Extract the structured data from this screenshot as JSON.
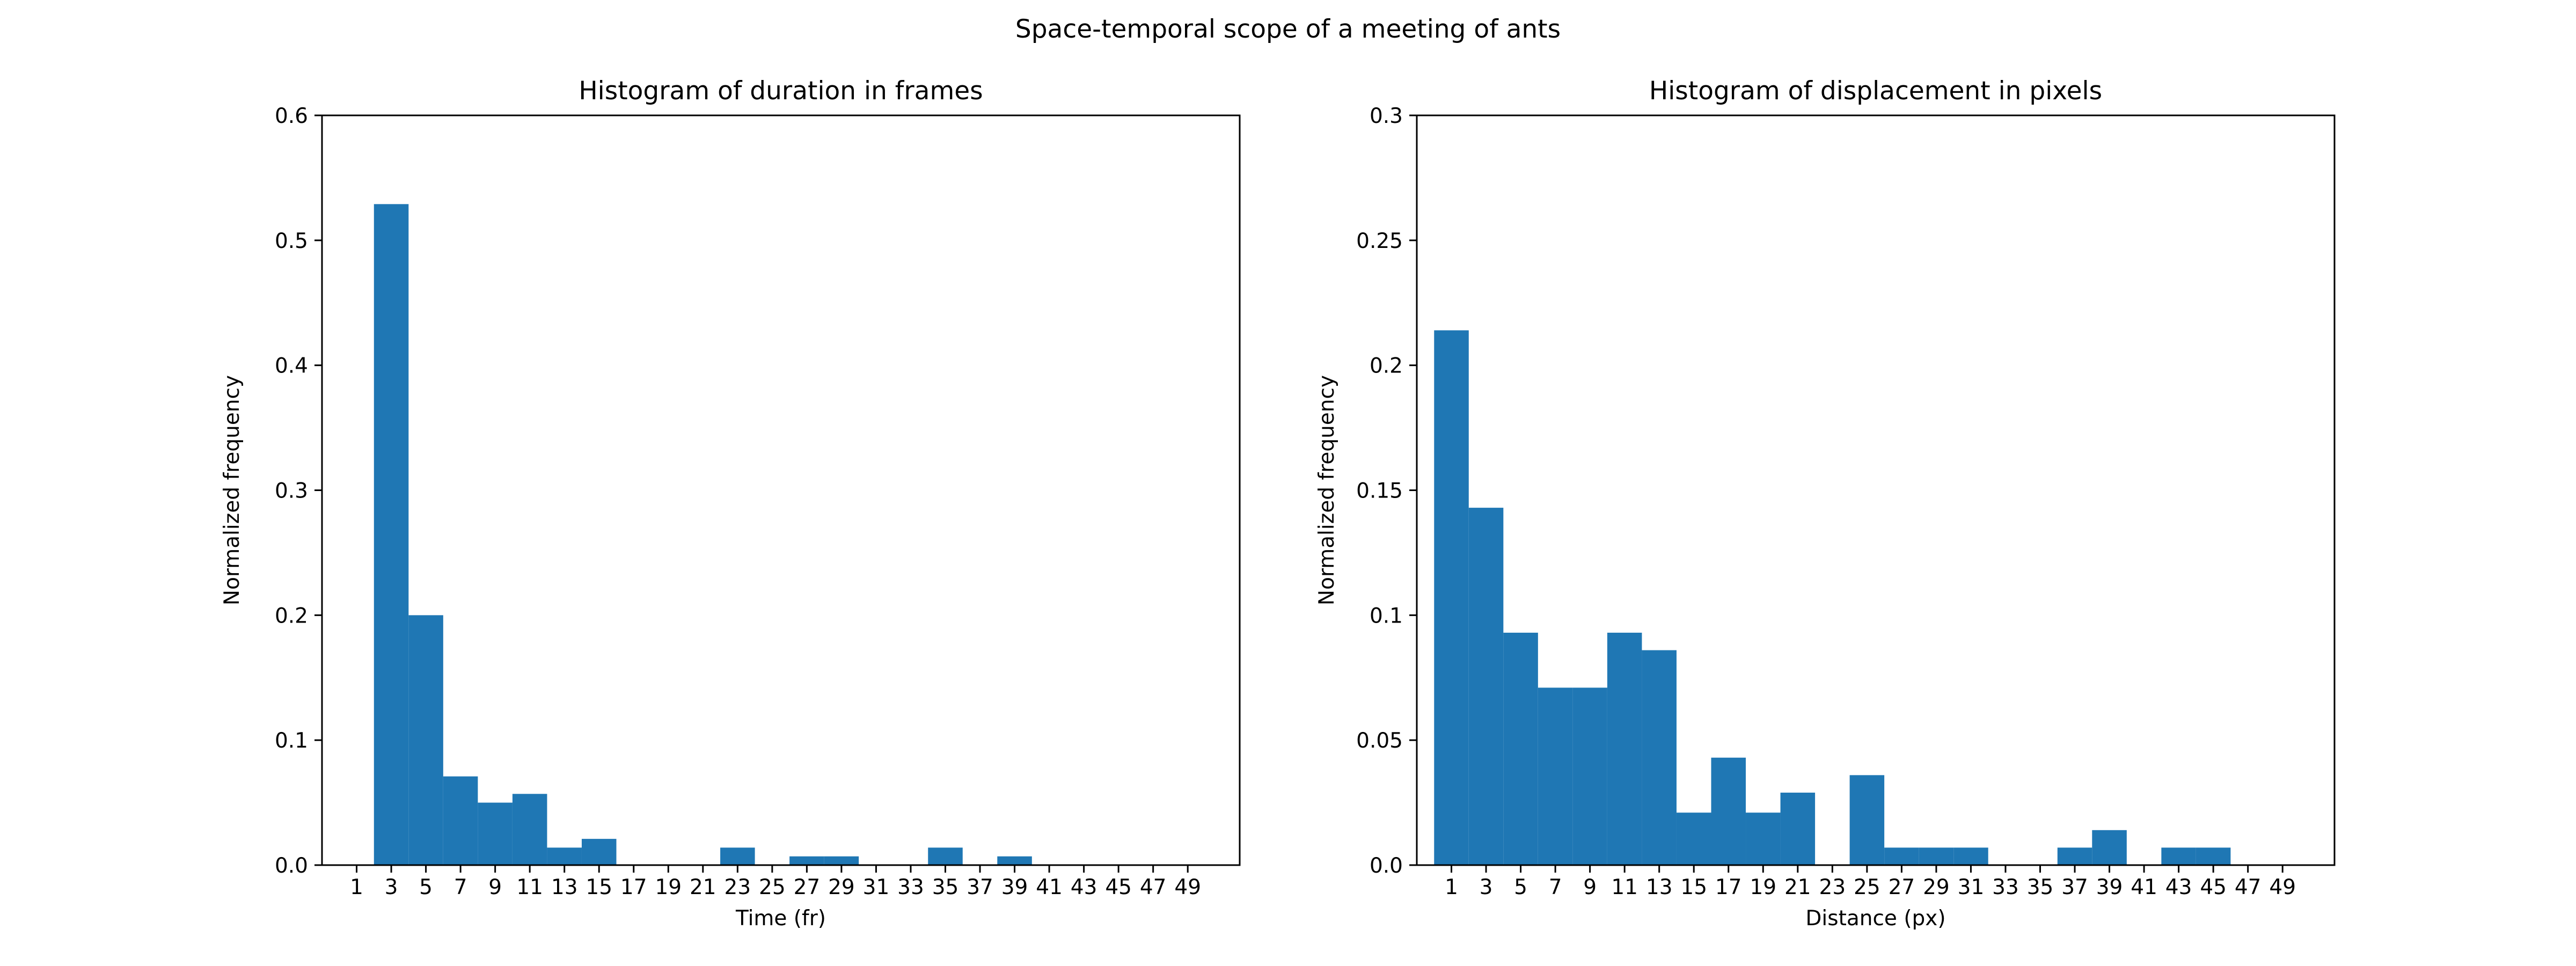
{
  "figure": {
    "suptitle": "Space-temporal scope of a meeting of ants"
  },
  "chart_data": [
    {
      "type": "bar",
      "title": "Histogram of duration in frames",
      "xlabel": "Time (fr)",
      "ylabel": "Normalized frequency",
      "xlim": [
        -1,
        52
      ],
      "ylim": [
        0,
        0.6
      ],
      "yticks": [
        0.0,
        0.1,
        0.2,
        0.3,
        0.4,
        0.5,
        0.6
      ],
      "ytick_labels": [
        "0.0",
        "0.1",
        "0.2",
        "0.3",
        "0.4",
        "0.5",
        "0.6"
      ],
      "xticks": [
        1,
        3,
        5,
        7,
        9,
        11,
        13,
        15,
        17,
        19,
        21,
        23,
        25,
        27,
        29,
        31,
        33,
        35,
        37,
        39,
        41,
        43,
        45,
        47,
        49
      ],
      "xtick_labels": [
        "1",
        "3",
        "5",
        "7",
        "9",
        "11",
        "13",
        "15",
        "17",
        "19",
        "21",
        "23",
        "25",
        "27",
        "29",
        "31",
        "33",
        "35",
        "37",
        "39",
        "41",
        "43",
        "45",
        "47",
        "49"
      ],
      "bin_edges": [
        0,
        2,
        4,
        6,
        8,
        10,
        12,
        14,
        16,
        18,
        20,
        22,
        24,
        26,
        28,
        30,
        32,
        34,
        36,
        38,
        40,
        42,
        44,
        46,
        48,
        50
      ],
      "values": [
        0,
        0.529,
        0.2,
        0.071,
        0.05,
        0.057,
        0.014,
        0.021,
        0,
        0,
        0,
        0.014,
        0,
        0.007,
        0.007,
        0,
        0,
        0.014,
        0,
        0.007,
        0,
        0,
        0,
        0,
        0
      ],
      "color": "#1f77b4"
    },
    {
      "type": "bar",
      "title": "Histogram of displacement in pixels",
      "xlabel": "Distance (px)",
      "ylabel": "Normalized frequency",
      "xlim": [
        -1,
        52
      ],
      "ylim": [
        0,
        0.3
      ],
      "yticks": [
        0.0,
        0.05,
        0.1,
        0.15,
        0.2,
        0.25,
        0.3
      ],
      "ytick_labels": [
        "0.0",
        "0.05",
        "0.1",
        "0.15",
        "0.2",
        "0.25",
        "0.3"
      ],
      "xticks": [
        1,
        3,
        5,
        7,
        9,
        11,
        13,
        15,
        17,
        19,
        21,
        23,
        25,
        27,
        29,
        31,
        33,
        35,
        37,
        39,
        41,
        43,
        45,
        47,
        49
      ],
      "xtick_labels": [
        "1",
        "3",
        "5",
        "7",
        "9",
        "11",
        "13",
        "15",
        "17",
        "19",
        "21",
        "23",
        "25",
        "27",
        "29",
        "31",
        "33",
        "35",
        "37",
        "39",
        "41",
        "43",
        "45",
        "47",
        "49"
      ],
      "bin_edges": [
        0,
        2,
        4,
        6,
        8,
        10,
        12,
        14,
        16,
        18,
        20,
        22,
        24,
        26,
        28,
        30,
        32,
        34,
        36,
        38,
        40,
        42,
        44,
        46,
        48,
        50
      ],
      "values": [
        0.214,
        0.143,
        0.093,
        0.071,
        0.071,
        0.093,
        0.086,
        0.021,
        0.043,
        0.021,
        0.029,
        0,
        0.036,
        0.007,
        0.007,
        0.007,
        0,
        0,
        0.007,
        0.014,
        0,
        0.007,
        0.007,
        0,
        0
      ],
      "color": "#1f77b4"
    }
  ]
}
